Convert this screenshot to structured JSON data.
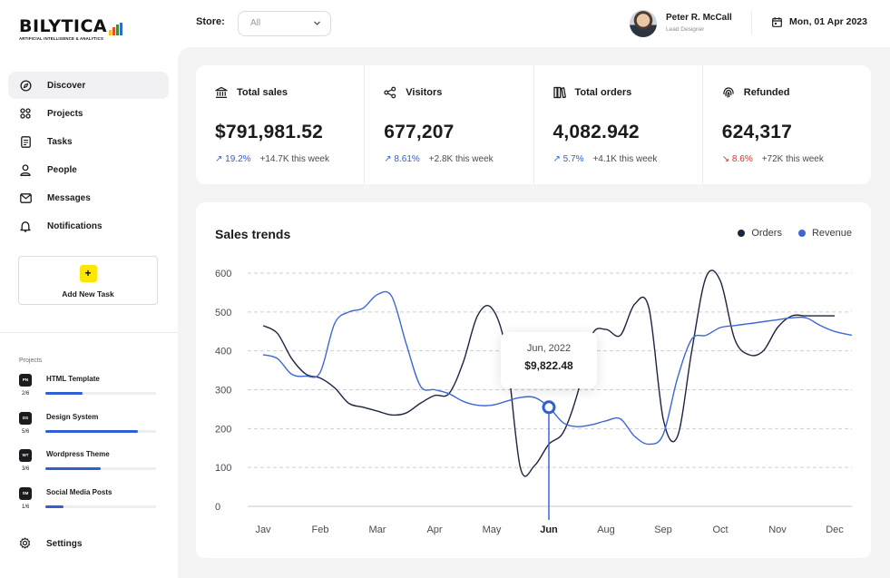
{
  "brand": {
    "name": "BILYTICA",
    "tagline": "ARTIFICIAL INTELLIGENCE & ANALYTICS",
    "bar_colors": [
      "#f2c21a",
      "#e94b2b",
      "#3d8f3d",
      "#2f6bd3"
    ]
  },
  "sidebar": {
    "nav": [
      {
        "label": "Discover",
        "icon": "compass-icon",
        "active": true
      },
      {
        "label": "Projects",
        "icon": "grid-icon"
      },
      {
        "label": "Tasks",
        "icon": "document-icon"
      },
      {
        "label": "People",
        "icon": "user-icon"
      },
      {
        "label": "Messages",
        "icon": "mail-icon"
      },
      {
        "label": "Notifications",
        "icon": "bell-icon"
      }
    ],
    "add_task": {
      "plus": "+",
      "label": "Add New Task"
    },
    "projects_title": "Projects",
    "projects": [
      {
        "badge": "PN",
        "name": "HTML Template",
        "count": "2/6",
        "progress": 0.333
      },
      {
        "badge": "DS",
        "name": "Design System",
        "count": "5/6",
        "progress": 0.833
      },
      {
        "badge": "WT",
        "name": "Wordpress Theme",
        "count": "3/6",
        "progress": 0.5
      },
      {
        "badge": "SM",
        "name": "Social Media Posts",
        "count": "1/6",
        "progress": 0.167
      }
    ],
    "settings_label": "Settings"
  },
  "topbar": {
    "store_label": "Store:",
    "store_value": "All",
    "user_name": "Peter R. McCall",
    "user_role": "Lead Designer",
    "date": "Mon, 01 Apr 2023"
  },
  "stats": [
    {
      "title": "Total sales",
      "icon": "bank-icon",
      "value": "$791,981.52",
      "change": "19.2%",
      "direction": "up",
      "week": "+14.7K this week"
    },
    {
      "title": "Visitors",
      "icon": "share-nodes-icon",
      "value": "677,207",
      "change": "8.61%",
      "direction": "up",
      "week": "+2.8K this week"
    },
    {
      "title": "Total orders",
      "icon": "books-icon",
      "value": "4,082.942",
      "change": "5.7%",
      "direction": "up",
      "week": "+4.1K this week"
    },
    {
      "title": "Refunded",
      "icon": "fingerprint-icon",
      "value": "624,317",
      "change": "8.6%",
      "direction": "down",
      "week": "+72K this week"
    }
  ],
  "colors": {
    "accent": "#2f5fd3",
    "orders": "#1b2440",
    "revenue": "#3d67d6",
    "down": "#e0302a"
  },
  "chart_card": {
    "tooltip": {
      "date": "Jun, 2022",
      "value": "$9,822.48"
    }
  },
  "chart_data": {
    "type": "line",
    "title": "Sales trends",
    "categories": [
      "Jav",
      "Feb",
      "Mar",
      "Apr",
      "May",
      "Jun",
      "Aug",
      "Sep",
      "Oct",
      "Nov",
      "Dec"
    ],
    "highlight_category": "Jun",
    "ylim": [
      0,
      600
    ],
    "yticks": [
      0,
      100,
      200,
      300,
      400,
      500,
      600
    ],
    "grid": true,
    "legend_position": "top-right",
    "series": [
      {
        "name": "Orders",
        "color": "#1b2440",
        "x": [
          0,
          0.25,
          0.5,
          0.75,
          1,
          1.25,
          1.5,
          1.75,
          2,
          2.25,
          2.5,
          2.75,
          3,
          3.25,
          3.5,
          3.75,
          4,
          4.25,
          4.5,
          4.75,
          5,
          5.25,
          5.5,
          5.75,
          6,
          6.25,
          6.5,
          6.75,
          7,
          7.25,
          7.5,
          7.75,
          8,
          8.25,
          8.5,
          8.75,
          9,
          9.25,
          9.5,
          9.75,
          10
        ],
        "values": [
          465,
          445,
          380,
          340,
          330,
          305,
          265,
          255,
          245,
          235,
          240,
          265,
          285,
          290,
          370,
          490,
          510,
          400,
          100,
          105,
          160,
          190,
          290,
          440,
          455,
          440,
          520,
          510,
          225,
          180,
          400,
          590,
          580,
          430,
          390,
          400,
          460,
          490,
          490,
          490,
          490
        ]
      },
      {
        "name": "Revenue",
        "color": "#3d67d6",
        "x": [
          0,
          0.25,
          0.5,
          0.75,
          1,
          1.25,
          1.5,
          1.75,
          2,
          2.25,
          2.5,
          2.75,
          3,
          3.25,
          3.5,
          3.75,
          4,
          4.25,
          4.5,
          4.75,
          5,
          5.25,
          5.5,
          5.75,
          6,
          6.25,
          6.5,
          6.75,
          7,
          7.25,
          7.5,
          7.75,
          8,
          8.25,
          8.5,
          8.75,
          9,
          9.25,
          9.5,
          9.75,
          10,
          10.3
        ],
        "values": [
          390,
          380,
          340,
          335,
          345,
          470,
          500,
          510,
          545,
          540,
          420,
          310,
          300,
          290,
          270,
          260,
          260,
          270,
          280,
          280,
          255,
          215,
          205,
          210,
          220,
          225,
          180,
          160,
          185,
          330,
          430,
          440,
          460,
          465,
          470,
          475,
          480,
          485,
          485,
          465,
          450,
          440
        ]
      }
    ],
    "annotation": {
      "x": "Jun",
      "label": "Jun, 2022",
      "value_label": "$9,822.48"
    }
  }
}
